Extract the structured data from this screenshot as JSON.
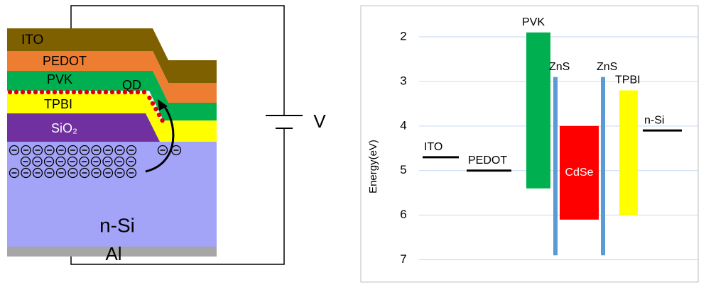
{
  "schematic": {
    "layers": {
      "ito": "ITO",
      "pedot": "PEDOT",
      "pvk": "PVK",
      "qd": "QD",
      "tpbi": "TPBI",
      "sio2": "SiO₂",
      "nsi": "n-Si",
      "al": "Al"
    },
    "voltage": "V"
  },
  "chart_data": {
    "type": "energy-level",
    "y_label": "Energy(eV)",
    "y_inverted": true,
    "ylim": [
      1.3,
      7.5
    ],
    "yticks": [
      2,
      3,
      4,
      5,
      6,
      7
    ],
    "grid": true,
    "levels": [
      {
        "name": "ITO",
        "value": 4.7,
        "color": "#000000"
      },
      {
        "name": "PEDOT",
        "value": 5.0,
        "color": "#000000"
      },
      {
        "name": "PVK",
        "values": [
          1.9,
          5.4
        ],
        "color": "#00b050"
      },
      {
        "name": "ZnS",
        "values": [
          2.9,
          6.9
        ],
        "color": "#5b9bd5"
      },
      {
        "name": "CdSe",
        "values": [
          4.0,
          6.1
        ],
        "color": "#ff0000"
      },
      {
        "name": "ZnS",
        "values": [
          2.9,
          6.9
        ],
        "color": "#5b9bd5"
      },
      {
        "name": "TPBI",
        "values": [
          3.2,
          6.0
        ],
        "color": "#ffff00"
      },
      {
        "name": "n-Si",
        "value": 4.1,
        "color": "#000000"
      }
    ]
  }
}
